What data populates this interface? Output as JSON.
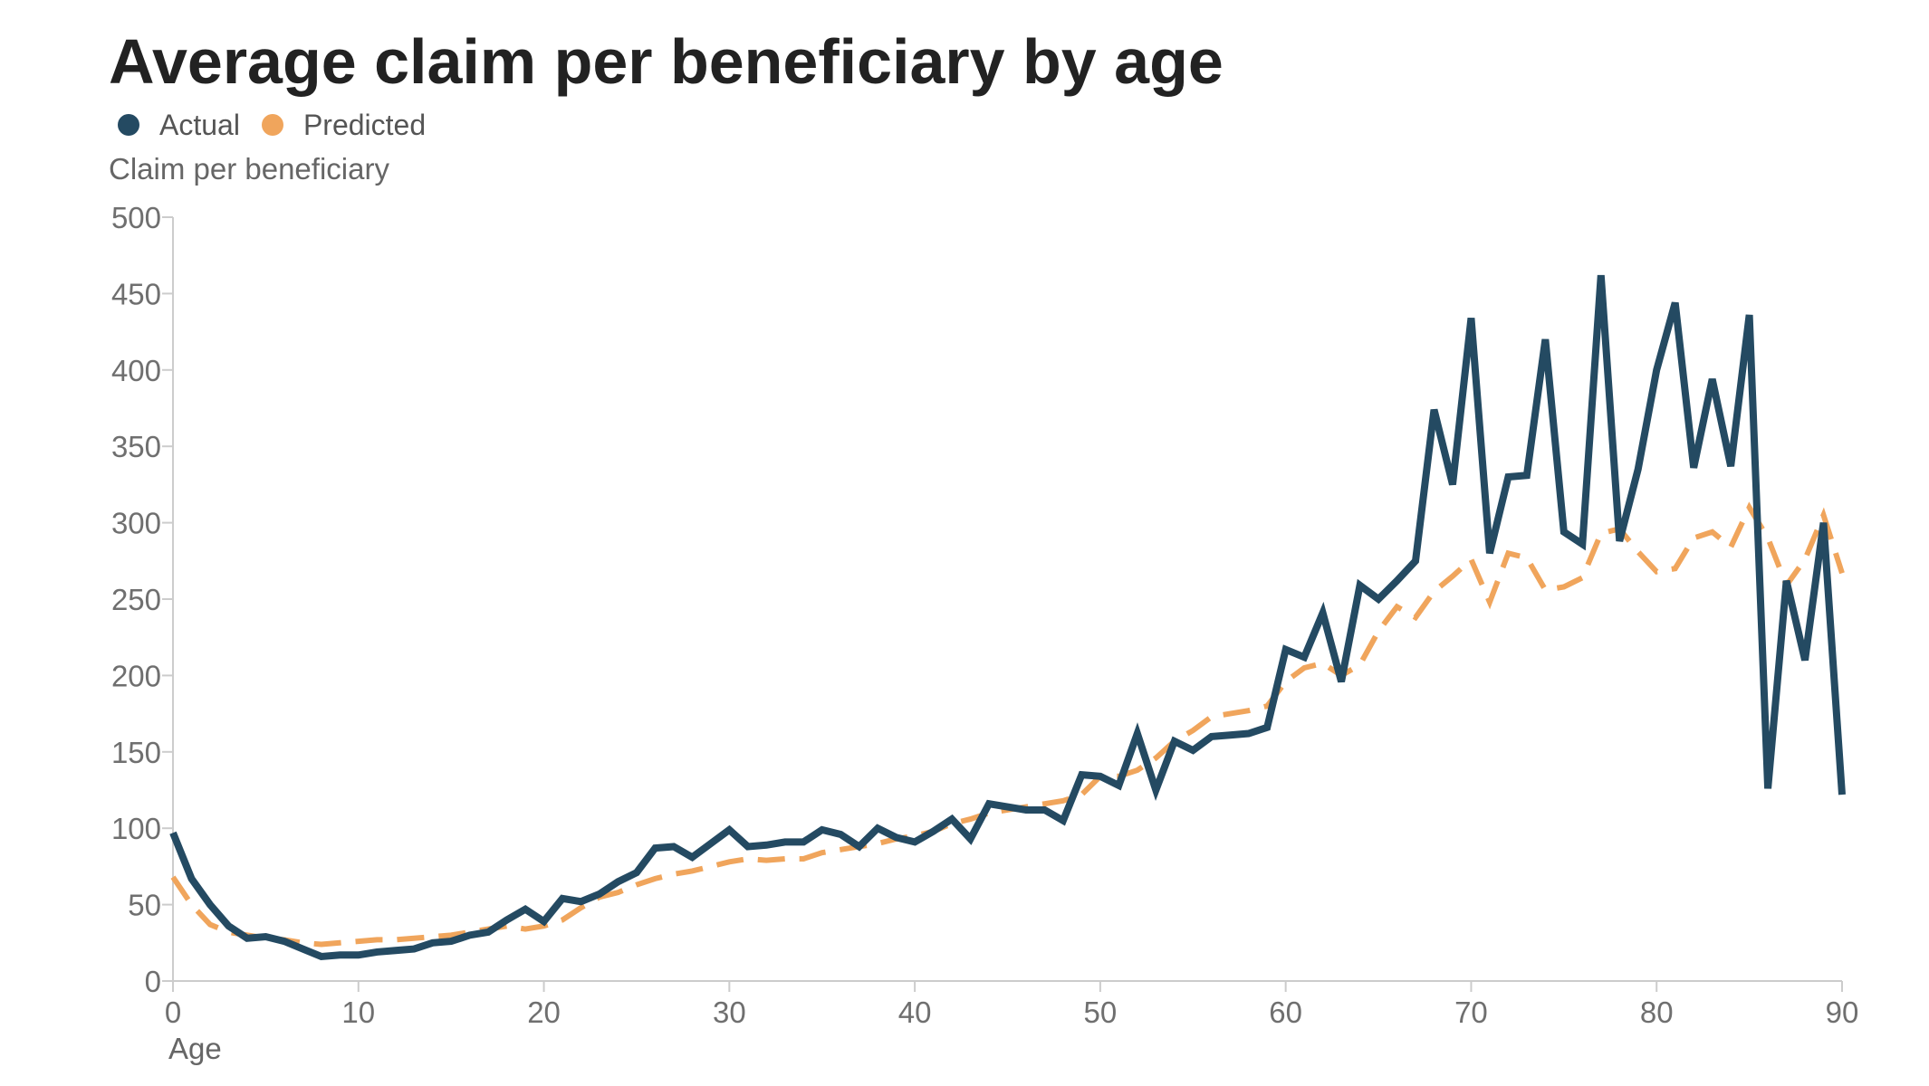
{
  "chart_data": {
    "type": "line",
    "title": "Average claim per beneficiary by age",
    "ylabel": "Claim per beneficiary",
    "xlabel": "Age",
    "xlim": [
      0,
      90
    ],
    "ylim": [
      0,
      500
    ],
    "x_ticks": [
      0,
      10,
      20,
      30,
      40,
      50,
      60,
      70,
      80,
      90
    ],
    "y_ticks": [
      0,
      50,
      100,
      150,
      200,
      250,
      300,
      350,
      400,
      450,
      500
    ],
    "x_tick_labels": [
      "0",
      "10",
      "20",
      "30",
      "40",
      "50",
      "60",
      "70",
      "80",
      "90"
    ],
    "y_tick_labels": [
      "0",
      "50",
      "100",
      "150",
      "200",
      "250",
      "300",
      "350",
      "400",
      "450",
      "500"
    ],
    "grid": false,
    "legend_position": "top-left",
    "x": [
      0,
      1,
      2,
      3,
      4,
      5,
      6,
      7,
      8,
      9,
      10,
      11,
      12,
      13,
      14,
      15,
      16,
      17,
      18,
      19,
      20,
      21,
      22,
      23,
      24,
      25,
      26,
      27,
      28,
      29,
      30,
      31,
      32,
      33,
      34,
      35,
      36,
      37,
      38,
      39,
      40,
      41,
      42,
      43,
      44,
      45,
      46,
      47,
      48,
      49,
      50,
      51,
      52,
      53,
      54,
      55,
      56,
      57,
      58,
      59,
      60,
      61,
      62,
      63,
      64,
      65,
      66,
      67,
      68,
      69,
      70,
      71,
      72,
      73,
      74,
      75,
      76,
      77,
      78,
      79,
      80,
      81,
      82,
      83,
      84,
      85,
      86,
      87,
      88,
      89,
      90
    ],
    "series": [
      {
        "name": "Actual",
        "color": "#244a62",
        "style": "solid",
        "values": [
          97,
          67,
          50,
          36,
          28,
          29,
          26,
          21,
          16,
          17,
          17,
          19,
          20,
          21,
          25,
          26,
          30,
          32,
          40,
          47,
          39,
          54,
          52,
          57,
          65,
          71,
          87,
          88,
          81,
          90,
          99,
          88,
          89,
          91,
          91,
          99,
          96,
          88,
          100,
          94,
          91,
          98,
          106,
          93,
          116,
          114,
          112,
          112,
          105,
          135,
          134,
          128,
          162,
          125,
          157,
          151,
          160,
          161,
          162,
          166,
          217,
          212,
          241,
          196,
          259,
          250,
          262,
          275,
          374,
          325,
          434,
          280,
          330,
          331,
          420,
          294,
          286,
          462,
          288,
          335,
          400,
          444,
          336,
          394,
          337,
          436,
          126,
          262,
          210,
          300,
          122
        ]
      },
      {
        "name": "Predicted",
        "color": "#f0a55c",
        "style": "dashed",
        "values": [
          68,
          50,
          37,
          32,
          30,
          28,
          27,
          25,
          24,
          25,
          26,
          27,
          27,
          28,
          29,
          30,
          32,
          34,
          36,
          34,
          36,
          40,
          48,
          55,
          58,
          63,
          67,
          70,
          72,
          75,
          78,
          80,
          79,
          80,
          80,
          84,
          86,
          88,
          90,
          93,
          95,
          98,
          103,
          106,
          110,
          112,
          114,
          116,
          118,
          122,
          134,
          134,
          138,
          146,
          157,
          164,
          173,
          175,
          177,
          180,
          196,
          205,
          208,
          200,
          207,
          229,
          245,
          238,
          255,
          265,
          276,
          248,
          280,
          277,
          256,
          258,
          264,
          293,
          296,
          281,
          268,
          270,
          290,
          294,
          284,
          310,
          290,
          259,
          276,
          305,
          267
        ]
      }
    ]
  }
}
